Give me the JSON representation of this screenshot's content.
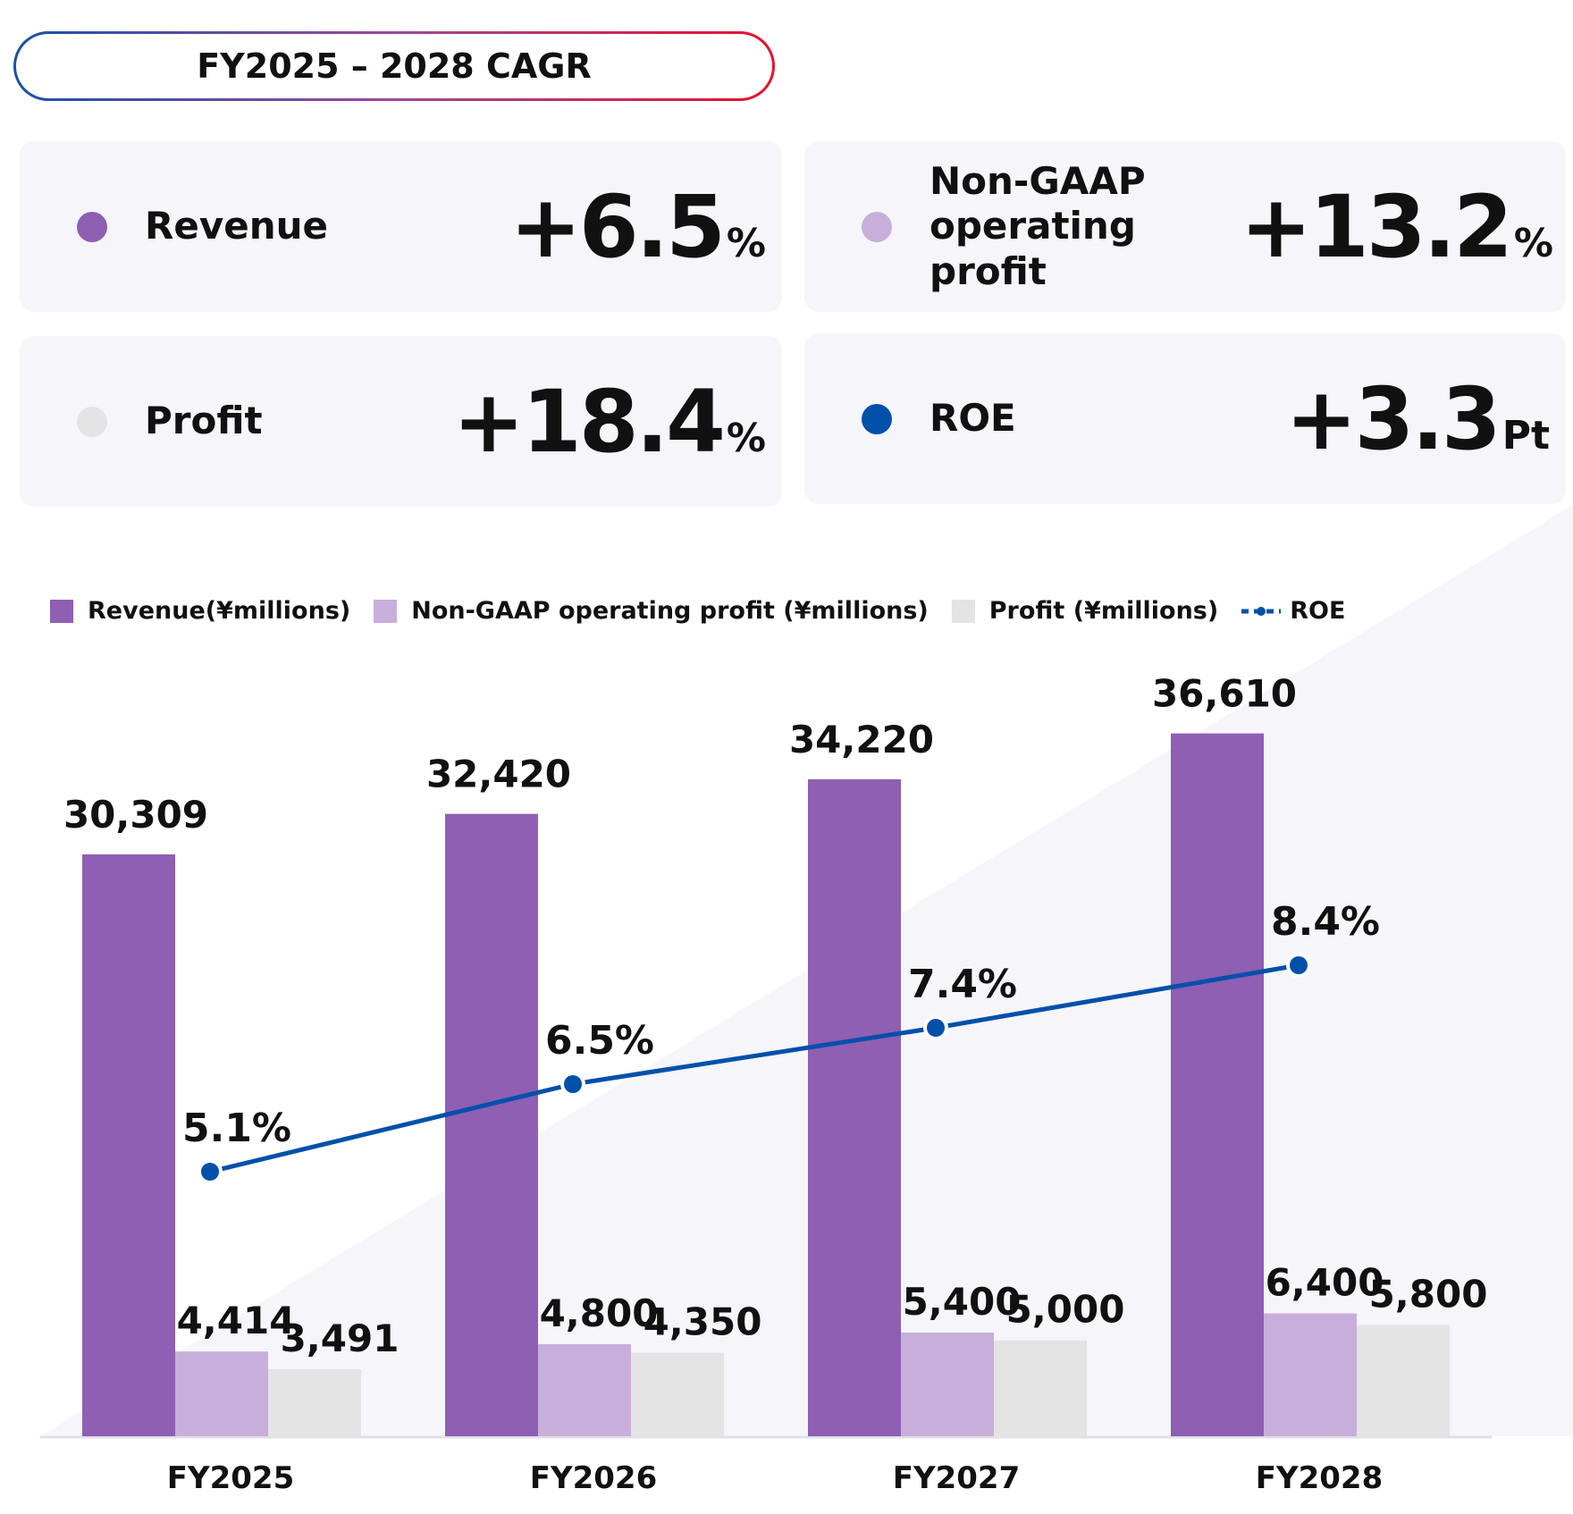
{
  "header": {
    "title": "FY2025 – 2028 CAGR"
  },
  "cards": [
    {
      "label": "Revenue",
      "value": "+6.5",
      "unit": "%",
      "color": "#8e5fb3"
    },
    {
      "label": "Non-GAAP operating profit",
      "value": "+13.2",
      "unit": "%",
      "color": "#c8aedb"
    },
    {
      "label": "Profit",
      "value": "+18.4",
      "unit": "%",
      "color": "#e4e4e4"
    },
    {
      "label": "ROE",
      "value": "+3.3",
      "unit": "Pt",
      "color": "#0050aa"
    }
  ],
  "chart_data": {
    "type": "bar",
    "categories": [
      "FY2025",
      "FY2026",
      "FY2027",
      "FY2028"
    ],
    "series": [
      {
        "name": "Revenue(¥millions)",
        "values": [
          30309,
          32420,
          34220,
          36610
        ],
        "labels": [
          "30,309",
          "32,420",
          "34,220",
          "36,610"
        ],
        "color": "#8e5fb3"
      },
      {
        "name": "Non-GAAP operating profit (¥millions)",
        "values": [
          4414,
          4800,
          5400,
          6400
        ],
        "labels": [
          "4,414",
          "4,800",
          "5,400",
          "6,400"
        ],
        "color": "#c8aedb"
      },
      {
        "name": "Profit (¥millions)",
        "values": [
          3491,
          4350,
          5000,
          5800
        ],
        "labels": [
          "3,491",
          "4,350",
          "5,000",
          "5,800"
        ],
        "color": "#e4e4e4"
      },
      {
        "name": "ROE",
        "type": "line",
        "values": [
          5.1,
          6.5,
          7.4,
          8.4
        ],
        "labels": [
          "5.1%",
          "6.5%",
          "7.4%",
          "8.4%"
        ],
        "color": "#0050aa",
        "axis": "secondary"
      }
    ],
    "ylim": [
      0,
      40000
    ],
    "legend": "top-left",
    "grid": false
  }
}
